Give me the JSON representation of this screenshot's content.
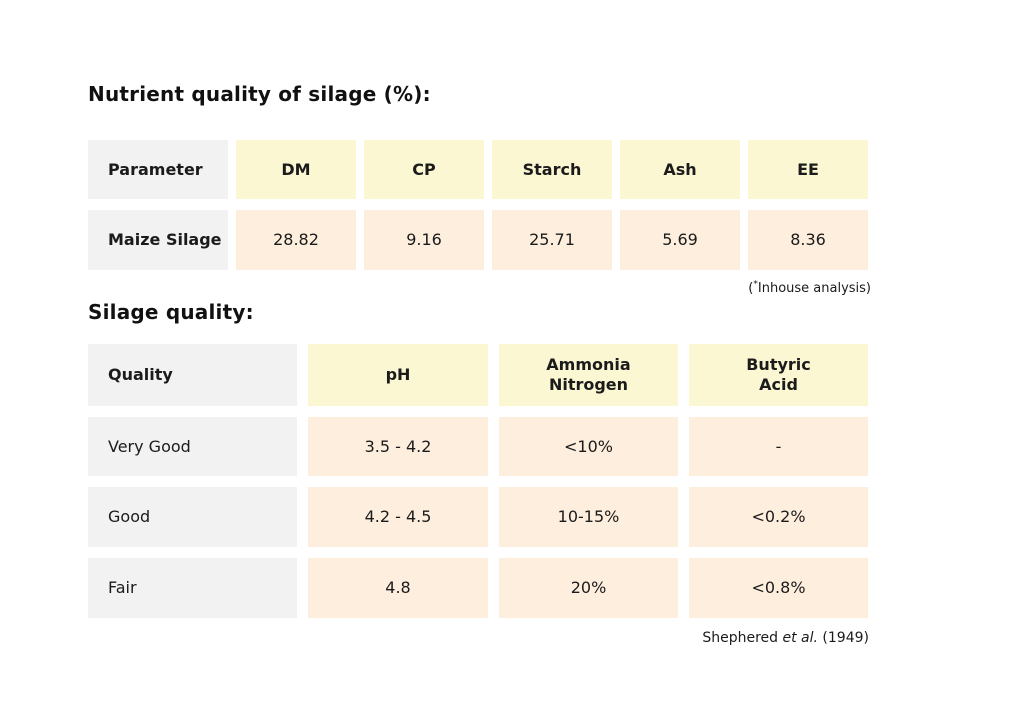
{
  "page": {
    "background": "#ffffff",
    "text_color": "#1b1b1b"
  },
  "colors": {
    "label_cell_bg": "#f2f2f2",
    "header_cell_bg": "#fbf7d3",
    "value_cell_bg": "#fdeedd"
  },
  "nutrient_table": {
    "title": "Nutrient quality of silage (%):",
    "columns": [
      "Parameter",
      "DM",
      "CP",
      "Starch",
      "Ash",
      "EE"
    ],
    "rows": [
      {
        "label": "Maize Silage",
        "values": [
          "28.82",
          "9.16",
          "25.71",
          "5.69",
          "8.36"
        ]
      }
    ],
    "footnote": {
      "open": "(",
      "sup": "*",
      "rest": "Inhouse analysis)"
    }
  },
  "quality_table": {
    "title": "Silage quality:",
    "columns": [
      "Quality",
      "pH",
      "Ammonia\nNitrogen",
      "Butyric\nAcid"
    ],
    "rows": [
      {
        "label": "Very Good",
        "values": [
          "3.5 - 4.2",
          "<10%",
          "-"
        ]
      },
      {
        "label": "Good",
        "values": [
          "4.2 - 4.5",
          "10-15%",
          "<0.2%"
        ]
      },
      {
        "label": "Fair",
        "values": [
          "4.8",
          "20%",
          "<0.8%"
        ]
      }
    ],
    "citation": {
      "prefix": "Shephered ",
      "italic": "et al.",
      "suffix": " (1949)"
    }
  }
}
